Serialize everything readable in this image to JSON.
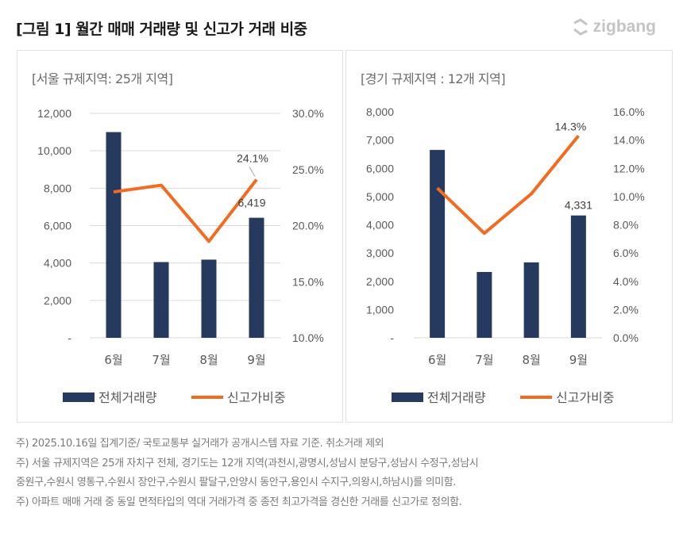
{
  "header": {
    "title": "[그림 1] 월간 매매 거래량 및 신고가 거래 비중",
    "logo_text": "zigbang"
  },
  "colors": {
    "bar": "#253a5e",
    "line": "#f26b21",
    "grid": "#d9d9d9",
    "text": "#595959"
  },
  "chart_data": [
    {
      "type": "bar+line",
      "title": "[서울 규제지역: 25개 지역]",
      "categories": [
        "6월",
        "7월",
        "8월",
        "9월"
      ],
      "series": [
        {
          "name": "전체거래량",
          "type": "bar",
          "axis": "left",
          "values": [
            11000,
            4050,
            4180,
            6419
          ]
        },
        {
          "name": "신고가비중",
          "type": "line",
          "axis": "right",
          "values": [
            23.0,
            23.6,
            18.6,
            24.1
          ]
        }
      ],
      "y_left": {
        "range": [
          0,
          12000
        ],
        "ticks": [
          "-",
          "2,000",
          "4,000",
          "6,000",
          "8,000",
          "10,000",
          "12,000"
        ]
      },
      "y_right": {
        "range": [
          10,
          30
        ],
        "ticks": [
          "10.0%",
          "15.0%",
          "20.0%",
          "25.0%",
          "30.0%"
        ]
      },
      "data_labels": {
        "bar": "6,419",
        "line": "24.1%"
      },
      "grid": true,
      "legend": "bottom"
    },
    {
      "type": "bar+line",
      "title": "[경기 규제지역 : 12개 지역]",
      "categories": [
        "6월",
        "7월",
        "8월",
        "9월"
      ],
      "series": [
        {
          "name": "전체거래량",
          "type": "bar",
          "axis": "left",
          "values": [
            6650,
            2330,
            2670,
            4331
          ]
        },
        {
          "name": "신고가비중",
          "type": "line",
          "axis": "right",
          "values": [
            10.6,
            7.4,
            10.2,
            14.3
          ]
        }
      ],
      "y_left": {
        "range": [
          0,
          8000
        ],
        "ticks": [
          "-",
          "1,000",
          "2,000",
          "3,000",
          "4,000",
          "5,000",
          "6,000",
          "7,000",
          "8,000"
        ]
      },
      "y_right": {
        "range": [
          0,
          16
        ],
        "ticks": [
          "0.0%",
          "2.0%",
          "4.0%",
          "6.0%",
          "8.0%",
          "10.0%",
          "12.0%",
          "14.0%",
          "16.0%"
        ]
      },
      "data_labels": {
        "bar": "4,331",
        "line": "14.3%"
      },
      "grid": false,
      "legend": "bottom"
    }
  ],
  "notes": [
    "주) 2025.10.16일 집계기준/ 국토교통부 실거래가 공개시스템 자료 기준. 취소거래 제외",
    "주) 서울 규제지역은 25개 자치구 전체, 경기도는  12개 지역(과천시,광명시,성남시 분당구,성남시 수정구,성남시",
    "중원구,수원시 영통구,수원시 장안구,수원시 팔달구,안양시 동안구,용인시 수지구,의왕시,하남시)를 의미함.",
    "주) 아파트 매매 거래 중 동일 면적타입의 역대 거래가격 중 종전 최고가격을 경신한 거래를 신고가로 정의함."
  ]
}
